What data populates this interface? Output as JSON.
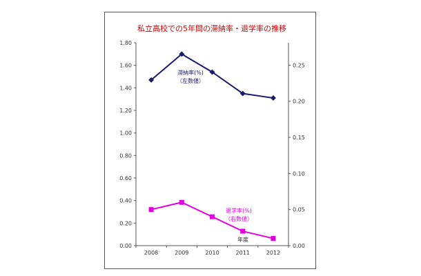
{
  "chart_data": {
    "type": "line",
    "title": "私立高校での5年間の滞納率・退学率の推移",
    "categories": [
      "2008",
      "2009",
      "2010",
      "2011",
      "2012"
    ],
    "series": [
      {
        "name": "滞納率(%)",
        "axis": "left",
        "color": "#1a1a6e",
        "marker": "diamond",
        "values": [
          1.47,
          1.7,
          1.54,
          1.35,
          1.31
        ],
        "annotation": [
          "滞納率(%)",
          "（左数値）"
        ]
      },
      {
        "name": "退学率(%)",
        "axis": "right",
        "color": "#e000e0",
        "marker": "square",
        "values": [
          0.05,
          0.06,
          0.04,
          0.02,
          0.01
        ],
        "annotation": [
          "退学率(%)",
          "（右数値）"
        ]
      }
    ],
    "y_left": {
      "ylim": [
        0,
        1.8
      ],
      "ticks": [
        "0.00",
        "0.20",
        "0.40",
        "0.60",
        "0.80",
        "1.00",
        "1.20",
        "1.40",
        "1.60",
        "1.80"
      ]
    },
    "y_right": {
      "ylim": [
        0,
        0.281
      ],
      "ticks": [
        "0.00",
        "0.05",
        "0.10",
        "0.15",
        "0.20",
        "0.25"
      ]
    },
    "x_annotation": "年度",
    "grid": false
  }
}
